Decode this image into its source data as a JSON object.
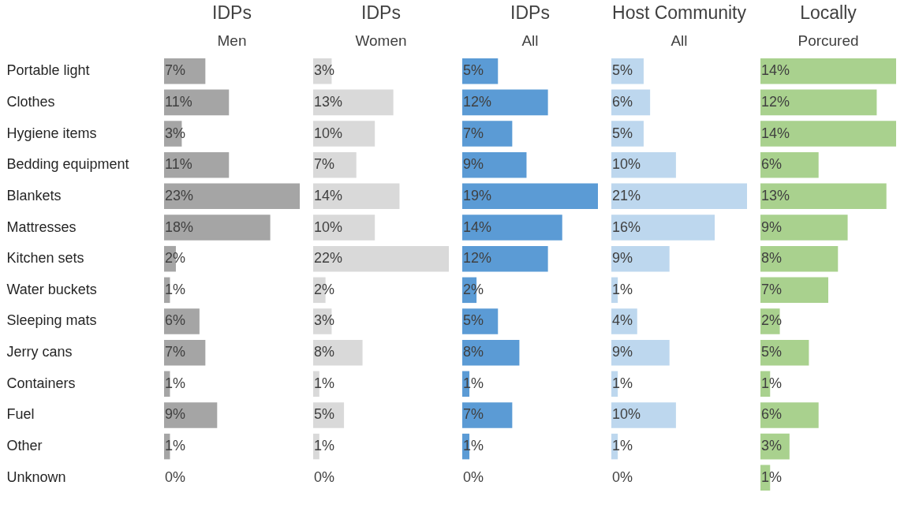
{
  "chart_data": [
    {
      "type": "bar",
      "orientation": "horizontal",
      "title": "IDPs",
      "subtitle": "Men",
      "tick_labels": "y",
      "color": "#a5a5a5",
      "xlim": [
        0,
        23
      ],
      "categories": [
        "Portable light",
        "Clothes",
        "Hygiene items",
        "Bedding equipment",
        "Blankets",
        "Mattresses",
        "Kitchen sets",
        "Water buckets",
        "Sleeping mats",
        "Jerry cans",
        "Containers",
        "Fuel",
        "Other",
        "Unknown"
      ],
      "values": [
        7,
        11,
        3,
        11,
        23,
        18,
        2,
        1,
        6,
        7,
        1,
        9,
        1,
        0
      ],
      "value_labels": [
        "7%",
        "11%",
        "3%",
        "11%",
        "23%",
        "18%",
        "2%",
        "1%",
        "6%",
        "7%",
        "1%",
        "9%",
        "1%",
        "0%"
      ]
    },
    {
      "type": "bar",
      "orientation": "horizontal",
      "title": "IDPs",
      "subtitle": "Women",
      "tick_labels": false,
      "color": "#d9d9d9",
      "xlim": [
        0,
        22
      ],
      "values": [
        3,
        13,
        10,
        7,
        14,
        10,
        22,
        2,
        3,
        8,
        1,
        5,
        1,
        0
      ],
      "value_labels": [
        "3%",
        "13%",
        "10%",
        "7%",
        "14%",
        "10%",
        "22%",
        "2%",
        "3%",
        "8%",
        "1%",
        "5%",
        "1%",
        "0%"
      ]
    },
    {
      "type": "bar",
      "orientation": "horizontal",
      "title": "IDPs",
      "subtitle": "All",
      "tick_labels": false,
      "color": "#5b9bd5",
      "xlim": [
        0,
        19
      ],
      "values": [
        5,
        12,
        7,
        9,
        19,
        14,
        12,
        2,
        5,
        8,
        1,
        7,
        1,
        0
      ],
      "value_labels": [
        "5%",
        "12%",
        "7%",
        "9%",
        "19%",
        "14%",
        "12%",
        "2%",
        "5%",
        "8%",
        "1%",
        "7%",
        "1%",
        "0%"
      ]
    },
    {
      "type": "bar",
      "orientation": "horizontal",
      "title": "Host Community",
      "subtitle": "All",
      "tick_labels": false,
      "color": "#bdd7ee",
      "xlim": [
        0,
        21
      ],
      "values": [
        5,
        6,
        5,
        10,
        21,
        16,
        9,
        1,
        4,
        9,
        1,
        10,
        1,
        0
      ],
      "value_labels": [
        "5%",
        "6%",
        "5%",
        "10%",
        "21%",
        "16%",
        "9%",
        "1%",
        "4%",
        "9%",
        "1%",
        "10%",
        "1%",
        "0%"
      ]
    },
    {
      "type": "bar",
      "orientation": "horizontal",
      "title": "Locally",
      "subtitle": "Porcured",
      "tick_labels": false,
      "color": "#a9d18e",
      "xlim": [
        0,
        14
      ],
      "values": [
        14,
        12,
        14,
        6,
        13,
        9,
        8,
        7,
        2,
        5,
        1,
        6,
        3,
        1
      ],
      "value_labels": [
        "14%",
        "12%",
        "14%",
        "6%",
        "13%",
        "9%",
        "8%",
        "7%",
        "2%",
        "5%",
        "1%",
        "6%",
        "3%",
        "1%"
      ]
    }
  ]
}
